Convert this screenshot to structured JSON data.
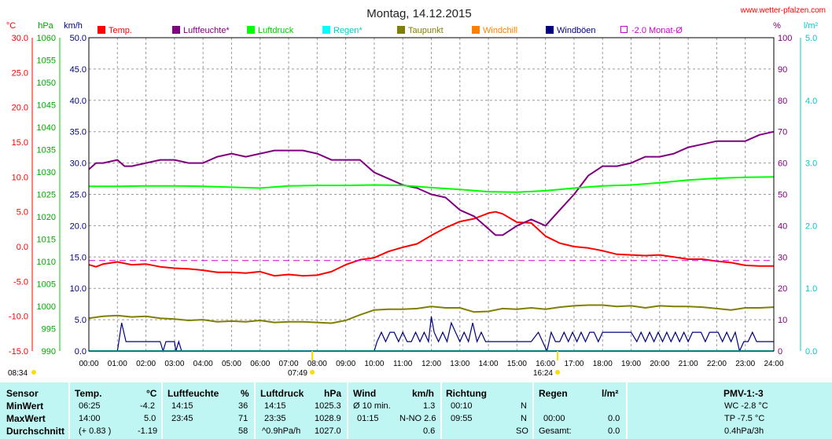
{
  "header": {
    "title": "Montag, 14.12.2015",
    "website": "www.wetter-pfalzen.com"
  },
  "axes": {
    "temp_unit": "°C",
    "hpa_unit": "hPa",
    "kmh_unit": "km/h",
    "pct_unit": "%",
    "rain_unit": "l/m²",
    "temp_ticks": [
      "30.0",
      "25.0",
      "20.0",
      "15.0",
      "10.0",
      "5.0",
      "0.0",
      "-5.0",
      "-10.0",
      "-15.0"
    ],
    "hpa_ticks": [
      "1060",
      "1055",
      "1050",
      "1045",
      "1040",
      "1035",
      "1030",
      "1025",
      "1020",
      "1015",
      "1010",
      "1005",
      "1000",
      "995",
      "990"
    ],
    "kmh_ticks": [
      "50.0",
      "45.0",
      "40.0",
      "35.0",
      "30.0",
      "25.0",
      "20.0",
      "15.0",
      "10.0",
      "5.0",
      "0.0"
    ],
    "pct_ticks": [
      "100",
      "90",
      "80",
      "70",
      "60",
      "50",
      "40",
      "30",
      "20",
      "10",
      "0"
    ],
    "rain_ticks": [
      "5.0",
      "4.0",
      "3.0",
      "2.0",
      "1.0",
      "0.0"
    ],
    "time_ticks": [
      "00:00",
      "01:00",
      "02:00",
      "03:00",
      "04:00",
      "05:00",
      "06:00",
      "07:00",
      "08:00",
      "09:00",
      "10:00",
      "11:00",
      "12:00",
      "13:00",
      "14:00",
      "15:00",
      "16:00",
      "17:00",
      "18:00",
      "19:00",
      "20:00",
      "21:00",
      "22:00",
      "23:00",
      "24:00"
    ],
    "sunrise": "07:49",
    "sunset": "16:24",
    "corner_time": "08:34"
  },
  "legend": [
    {
      "label": "Temp.",
      "color": "#ff0000",
      "label_color": "#ff0000"
    },
    {
      "label": "Luftfeuchte*",
      "color": "#800080",
      "label_color": "#800080"
    },
    {
      "label": "Luftdruck",
      "color": "#00ff00",
      "label_color": "#00cc00"
    },
    {
      "label": "Regen*",
      "color": "#00ffff",
      "label_color": "#00cccc"
    },
    {
      "label": "Taupunkt",
      "color": "#808000",
      "label_color": "#808000"
    },
    {
      "label": "Windchill",
      "color": "#ff8000",
      "label_color": "#ff8000"
    },
    {
      "label": "Windböen",
      "color": "#000080",
      "label_color": "#000080"
    },
    {
      "label": "-2.0 Monat-Ø",
      "color": "#cc00cc",
      "label_color": "#cc00cc"
    }
  ],
  "chart_data": {
    "type": "line",
    "x_unit": "hour of day",
    "xlim": [
      0,
      24
    ],
    "series": [
      {
        "name": "Temp.",
        "axis": "°C",
        "ylim": [
          -15,
          30
        ],
        "x": [
          0,
          0.25,
          0.5,
          1,
          1.5,
          2,
          2.5,
          3,
          3.5,
          4,
          4.5,
          5,
          5.5,
          6,
          6.5,
          7,
          7.5,
          8,
          8.5,
          9,
          9.5,
          10,
          10.5,
          11,
          11.5,
          12,
          12.5,
          13,
          13.5,
          14,
          14.25,
          14.5,
          15,
          15.5,
          16,
          16.5,
          17,
          17.5,
          18,
          18.5,
          19,
          19.5,
          20,
          20.5,
          21,
          21.5,
          22,
          22.5,
          23,
          23.5,
          24
        ],
        "y": [
          -2.6,
          -2.9,
          -2.5,
          -2.2,
          -2.6,
          -2.5,
          -2.9,
          -3.1,
          -3.2,
          -3.4,
          -3.7,
          -3.7,
          -3.8,
          -3.6,
          -4.2,
          -4.0,
          -4.2,
          -4.1,
          -3.6,
          -2.6,
          -1.9,
          -1.6,
          -0.7,
          -0.1,
          0.4,
          1.6,
          2.7,
          3.6,
          4.0,
          4.8,
          5.0,
          4.7,
          3.5,
          3.4,
          1.5,
          0.5,
          0.0,
          -0.2,
          -0.6,
          -1.1,
          -1.2,
          -1.3,
          -1.2,
          -1.5,
          -1.8,
          -1.8,
          -2.1,
          -2.3,
          -2.7,
          -2.8,
          -2.8
        ]
      },
      {
        "name": "Luftfeuchte*",
        "axis": "%",
        "ylim": [
          0,
          100
        ],
        "x": [
          0,
          0.25,
          0.5,
          1,
          1.25,
          1.5,
          2,
          2.5,
          3,
          3.5,
          4,
          4.5,
          5,
          5.5,
          6,
          6.5,
          7,
          7.5,
          8,
          8.5,
          9,
          9.5,
          10,
          10.5,
          11,
          11.5,
          12,
          12.5,
          13,
          13.5,
          14,
          14.25,
          14.5,
          15,
          15.5,
          16,
          16.5,
          17,
          17.5,
          18,
          18.5,
          19,
          19.5,
          20,
          20.5,
          21,
          21.5,
          22,
          22.5,
          23,
          23.5,
          24
        ],
        "y": [
          58,
          60,
          60,
          61,
          59,
          59,
          60,
          61,
          61,
          60,
          60,
          62,
          63,
          62,
          63,
          64,
          64,
          64,
          63,
          61,
          61,
          61,
          57,
          55,
          53,
          52,
          50,
          49,
          45,
          43,
          39,
          37,
          37,
          40,
          42,
          40,
          45,
          50,
          56,
          59,
          59,
          60,
          62,
          62,
          63,
          65,
          66,
          67,
          67,
          67,
          69,
          70
        ]
      },
      {
        "name": "Luftdruck",
        "axis": "hPa",
        "ylim": [
          990,
          1060
        ],
        "x": [
          0,
          1,
          2,
          3,
          4,
          5,
          6,
          7,
          8,
          9,
          10,
          11,
          12,
          13,
          14,
          15,
          16,
          17,
          18,
          19,
          20,
          21,
          22,
          23,
          24
        ],
        "y": [
          1026.8,
          1026.8,
          1026.9,
          1026.9,
          1026.8,
          1026.6,
          1026.4,
          1026.9,
          1027.0,
          1027.0,
          1027.1,
          1027.0,
          1026.5,
          1026.1,
          1025.6,
          1025.5,
          1025.8,
          1026.4,
          1026.9,
          1027.1,
          1027.6,
          1028.2,
          1028.6,
          1028.8,
          1028.9
        ]
      },
      {
        "name": "Taupunkt",
        "axis": "°C",
        "ylim": [
          -15,
          30
        ],
        "x": [
          0,
          0.5,
          1,
          1.5,
          2,
          2.5,
          3,
          3.5,
          4,
          4.5,
          5,
          5.5,
          6,
          6.5,
          7,
          7.5,
          8,
          8.5,
          9,
          9.5,
          10,
          10.5,
          11,
          11.5,
          12,
          12.5,
          13,
          13.5,
          14,
          14.5,
          15,
          15.5,
          16,
          16.5,
          17,
          17.5,
          18,
          18.5,
          19,
          19.5,
          20,
          20.5,
          21,
          21.5,
          22,
          22.5,
          23,
          23.5,
          24
        ],
        "y": [
          -10.3,
          -10.0,
          -9.9,
          -10.1,
          -10.0,
          -10.3,
          -10.4,
          -10.6,
          -10.5,
          -10.8,
          -10.7,
          -10.8,
          -10.6,
          -10.9,
          -10.8,
          -10.8,
          -10.9,
          -11.0,
          -10.6,
          -9.8,
          -9.1,
          -9.0,
          -9.0,
          -8.9,
          -8.6,
          -8.8,
          -8.8,
          -9.4,
          -9.3,
          -8.9,
          -9.0,
          -8.8,
          -9.0,
          -8.7,
          -8.5,
          -8.4,
          -8.4,
          -8.6,
          -8.5,
          -8.8,
          -8.5,
          -8.6,
          -8.6,
          -8.7,
          -8.9,
          -9.1,
          -8.8,
          -8.8,
          -8.7
        ]
      },
      {
        "name": "Windböen",
        "axis": "km/h",
        "ylim": [
          0,
          50
        ],
        "x": [
          0,
          1,
          1.15,
          1.3,
          1.5,
          2,
          2.5,
          2.6,
          2.7,
          3,
          3.05,
          3.15,
          3.25,
          3.5,
          5,
          7,
          9,
          9.9,
          10,
          10.1,
          10.25,
          10.4,
          10.55,
          10.7,
          10.85,
          11,
          11.15,
          11.3,
          11.45,
          11.6,
          11.75,
          11.9,
          12.0,
          12.1,
          12.25,
          12.4,
          12.55,
          12.7,
          12.85,
          13.0,
          13.15,
          13.3,
          13.45,
          13.6,
          13.75,
          13.9,
          14.05,
          14.2,
          14.35,
          14.5,
          15,
          15.5,
          15.75,
          15.9,
          16.05,
          16.2,
          16.35,
          16.5,
          16.65,
          16.8,
          16.95,
          17.1,
          17.25,
          17.4,
          17.55,
          17.7,
          17.85,
          18,
          18.15,
          18.3,
          18.45,
          18.6,
          19,
          19.2,
          19.35,
          19.5,
          19.65,
          19.8,
          19.95,
          20.1,
          20.25,
          20.4,
          20.55,
          20.7,
          20.85,
          21,
          21.15,
          21.3,
          21.45,
          21.6,
          21.75,
          21.9,
          22.05,
          22.2,
          22.35,
          22.5,
          22.65,
          22.8,
          22.95,
          23.1,
          23.25,
          23.4,
          23.55,
          24
        ],
        "y": [
          0,
          0,
          4.5,
          1.5,
          1.5,
          1.5,
          1.5,
          0,
          1.5,
          1.5,
          0,
          1.5,
          0,
          0,
          0,
          0,
          0,
          0,
          0,
          1.5,
          3.0,
          1.5,
          3.0,
          3.0,
          1.5,
          3.0,
          1.5,
          1.5,
          3.0,
          1.5,
          3.0,
          1.5,
          5.5,
          3.0,
          1.5,
          3.0,
          1.5,
          4.5,
          3.0,
          1.5,
          3.0,
          1.5,
          4.5,
          1.5,
          3.0,
          1.5,
          1.5,
          1.5,
          1.5,
          1.5,
          1.5,
          1.5,
          3.0,
          1.5,
          0,
          3.0,
          1.5,
          1.5,
          3.0,
          1.5,
          3.0,
          1.5,
          3.0,
          1.5,
          3.0,
          3.0,
          1.5,
          3.0,
          3.0,
          3.0,
          3.0,
          3.0,
          3.0,
          1.5,
          3.0,
          1.5,
          3.0,
          1.5,
          3.0,
          1.5,
          3.0,
          1.5,
          3.0,
          1.5,
          3.0,
          1.5,
          3.0,
          3.0,
          3.0,
          1.5,
          3.0,
          3.0,
          3.0,
          1.5,
          3.0,
          1.5,
          3.0,
          0,
          1.5,
          1.5,
          3.0,
          1.5,
          1.5,
          1.5
        ]
      },
      {
        "name": "Regen*",
        "axis": "l/m²",
        "ylim": [
          0,
          5
        ],
        "x": [
          0,
          24
        ],
        "y": [
          0,
          0
        ]
      },
      {
        "name": "-2.0 Monat-Ø",
        "axis": "°C",
        "ylim": [
          -15,
          30
        ],
        "x": [
          0,
          24
        ],
        "y": [
          -2.0,
          -2.0
        ]
      }
    ]
  },
  "table": {
    "headers": {
      "sensor": "Sensor",
      "temp": "Temp.",
      "temp_unit": "°C",
      "hum": "Luftfeuchte",
      "hum_unit": "%",
      "press": "Luftdruck",
      "press_unit": "hPa",
      "wind": "Wind",
      "wind_unit": "km/h",
      "dir": "Richtung",
      "rain": "Regen",
      "rain_unit": "l/m²",
      "pmv": "PMV-1:-3"
    },
    "rows": [
      {
        "label": "MinWert",
        "temp_time": "06:25",
        "temp_val": "-4.2",
        "hum_time": "14:15",
        "hum_val": "36",
        "press_time": "14:15",
        "press_val": "1025.3",
        "wind_note": "Ø 10 min.",
        "wind_val": "1.3",
        "dir_time": "00:10",
        "dir_val": "N",
        "rain_time": "",
        "rain_val": "",
        "pmv": "WC -2.8 °C"
      },
      {
        "label": "MaxWert",
        "temp_time": "14:00",
        "temp_val": "5.0",
        "hum_time": "23:45",
        "hum_val": "71",
        "press_time": "23:35",
        "press_val": "1028.9",
        "wind_note": "01:15",
        "wind_val": "N-NO 2.6",
        "dir_time": "09:55",
        "dir_val": "N",
        "rain_time": "00:00",
        "rain_val": "0.0",
        "pmv": "TP -7.5 °C"
      },
      {
        "label": "Durchschnitt",
        "temp_time": "(+ 0.83 )",
        "temp_val": "-1.19",
        "hum_time": "",
        "hum_val": "58",
        "press_time": "^0.9hPa/h",
        "press_val": "1027.0",
        "wind_note": "",
        "wind_val": "0.6",
        "dir_time": "",
        "dir_val": "SO",
        "rain_time": "Gesamt:",
        "rain_val": "0.0",
        "pmv": "0.4hPa/3h"
      }
    ]
  }
}
